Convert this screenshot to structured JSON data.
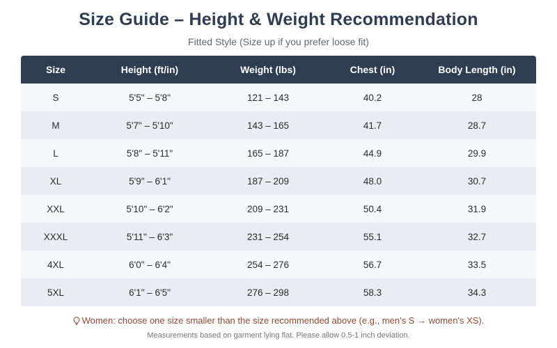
{
  "title": "Size Guide – Height & Weight Recommendation",
  "subtitle": "Fitted Style (Size up if you prefer loose fit)",
  "table": {
    "headers": [
      "Size",
      "Height (ft/in)",
      "Weight (lbs)",
      "Chest (in)",
      "Body Length (in)"
    ],
    "rows": [
      [
        "S",
        "5'5\" – 5'8\"",
        "121 – 143",
        "40.2",
        "28"
      ],
      [
        "M",
        "5'7\" – 5'10\"",
        "143 – 165",
        "41.7",
        "28.7"
      ],
      [
        "L",
        "5'8\" – 5'11\"",
        "165 – 187",
        "44.9",
        "29.9"
      ],
      [
        "XL",
        "5'9\" – 6'1\"",
        "187 – 209",
        "48.0",
        "30.7"
      ],
      [
        "XXL",
        "5'10\" – 6'2\"",
        "209 – 231",
        "50.4",
        "31.9"
      ],
      [
        "XXXL",
        "5'11\" – 6'3\"",
        "231 – 254",
        "55.1",
        "32.7"
      ],
      [
        "4XL",
        "6'0\" – 6'4\"",
        "254 – 276",
        "56.7",
        "33.5"
      ],
      [
        "5XL",
        "6'1\" – 6'5\"",
        "276 – 298",
        "58.3",
        "34.3"
      ]
    ]
  },
  "note": {
    "icon": "lightbulb-icon",
    "text": "Women: choose one size smaller than the size recommended above (e.g., men's S → women's XS)."
  },
  "footer": "Measurements based on garment lying flat. Please allow 0.5-1 inch deviation.",
  "colors": {
    "header_bg": "#2f3d52",
    "title": "#2f3d52",
    "row_light": "#f7f8fa",
    "row_dark": "#e9ecf0",
    "note": "#8f4a37"
  }
}
